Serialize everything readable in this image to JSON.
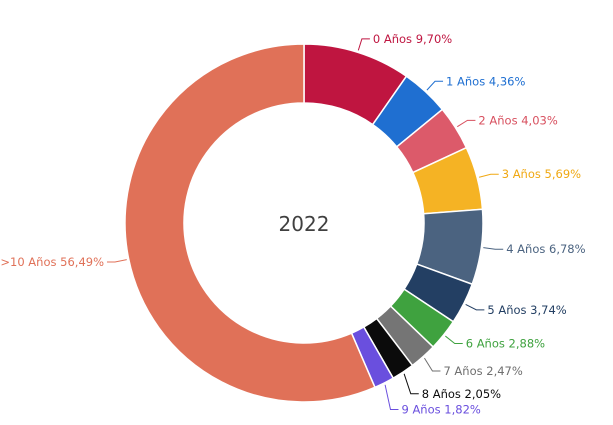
{
  "chart_data": {
    "type": "pie",
    "center_label": "2022",
    "categories": [
      "0 Años",
      "1 Años",
      "2 Años",
      "3 Años",
      "4 Años",
      "5 Años",
      "6 Años",
      "7 Años",
      "8 Años",
      "9 Años",
      "=>10 Años"
    ],
    "values": [
      9.7,
      4.36,
      4.03,
      5.69,
      6.78,
      3.74,
      2.88,
      2.47,
      2.05,
      1.82,
      56.49
    ],
    "labels": [
      "0 Años 9,70%",
      "1 Años 4,36%",
      "2 Años 4,03%",
      "3 Años 5,69%",
      "4 Años 6,78%",
      "5 Años 3,74%",
      "6 Años 2,88%",
      "7 Años 2,47%",
      "8 Años 2,05%",
      "9 Años 1,82%",
      "=>10 Años 56,49%"
    ],
    "colors": [
      "#bf1540",
      "#1f6fd1",
      "#dc5a6a",
      "#f5b324",
      "#4b6380",
      "#233f63",
      "#3fa23f",
      "#757575",
      "#0b0b0b",
      "#6a4fde",
      "#e07158"
    ],
    "label_colors": [
      "#bf1540",
      "#1f6fd1",
      "#d8505f",
      "#f0a812",
      "#4b6380",
      "#233f63",
      "#3fa23f",
      "#6f6f6f",
      "#0b0b0b",
      "#6a4fde",
      "#e07158"
    ],
    "grid": false,
    "legend": "none"
  }
}
